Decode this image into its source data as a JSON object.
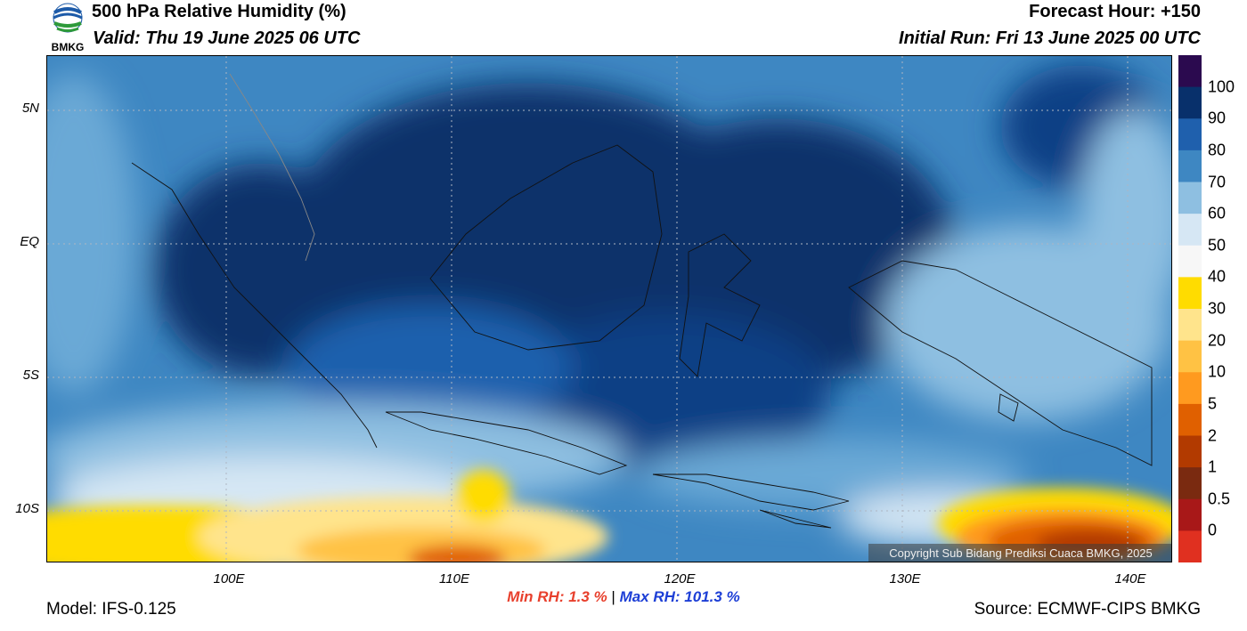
{
  "header": {
    "title": "500 hPa Relative Humidity (%)",
    "valid": "Valid: Thu 19 June 2025 06 UTC",
    "forecast_hour": "Forecast Hour: +150",
    "initial_run": "Initial Run: Fri 13 June 2025 00 UTC",
    "logo_text": "BMKG"
  },
  "map": {
    "lat_labels": [
      "5N",
      "EQ",
      "5S",
      "10S"
    ],
    "lon_labels": [
      "100E",
      "110E",
      "120E",
      "130E",
      "140E"
    ],
    "lon_range": [
      92,
      142
    ],
    "lat_range": [
      -12,
      7
    ]
  },
  "colorbar": {
    "labels": [
      "100",
      "90",
      "80",
      "70",
      "60",
      "50",
      "40",
      "30",
      "20",
      "10",
      "5",
      "2",
      "1",
      "0.5",
      "0"
    ],
    "colors": [
      "#2b0a4f",
      "#08306b",
      "#1f60ad",
      "#3e87c2",
      "#8ebfe1",
      "#d6e7f4",
      "#f7f7f7",
      "#ffdc00",
      "#ffe48c",
      "#ffc244",
      "#ff9a1f",
      "#e06000",
      "#b23a00",
      "#7a2a10",
      "#a81818",
      "#e03020"
    ]
  },
  "copyright": "Copyright Sub Bidang Prediksi Cuaca BMKG, 2025",
  "stats": {
    "min_label": "Min RH:   1.3 %",
    "separator": "|",
    "max_label": "Max RH: 101.3 %"
  },
  "footer": {
    "model": "Model: IFS-0.125",
    "source": "Source: ECMWF-CIPS BMKG"
  }
}
